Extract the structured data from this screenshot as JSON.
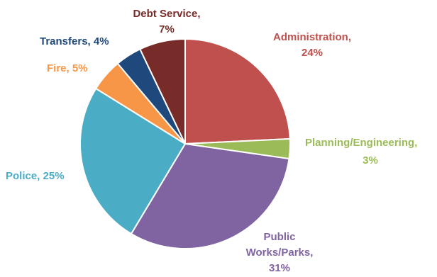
{
  "chart_data": {
    "type": "pie",
    "title": "",
    "start_angle_deg": 0,
    "direction": "clockwise",
    "legend": "none",
    "slices": [
      {
        "label": "Administration",
        "value": 24,
        "display": "24%",
        "color": "#C0504D",
        "label_color": "#C0504D"
      },
      {
        "label": "Planning/Engineering",
        "value": 3,
        "display": "3%",
        "color": "#9BBB59",
        "label_color": "#9BBB59"
      },
      {
        "label": "Public Works/Parks",
        "value": 31,
        "display": "31%",
        "color": "#8064A2",
        "label_color": "#8064A2"
      },
      {
        "label": "Police",
        "value": 25,
        "display": "25%",
        "color": "#4BACC6",
        "label_color": "#4BACC6"
      },
      {
        "label": "Fire",
        "value": 5,
        "display": "5%",
        "color": "#F79646",
        "label_color": "#F79646"
      },
      {
        "label": "Transfers",
        "value": 4,
        "display": "4%",
        "color": "#1F497D",
        "label_color": "#1F497D"
      },
      {
        "label": "Debt Service",
        "value": 7,
        "display": "7%",
        "color": "#772C2A",
        "label_color": "#772C2A"
      }
    ]
  }
}
